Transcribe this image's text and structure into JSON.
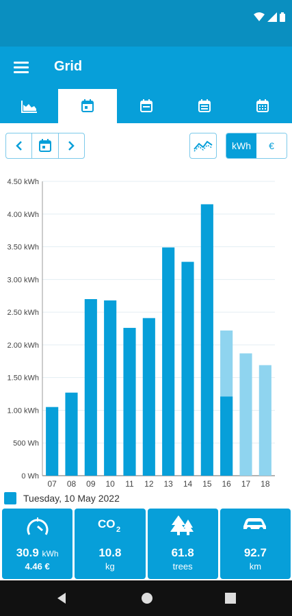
{
  "app": {
    "title": "Grid"
  },
  "tabs": [
    {
      "icon": "area-chart-icon",
      "active": false
    },
    {
      "icon": "day-calendar-icon",
      "active": true
    },
    {
      "icon": "week-calendar-icon",
      "active": false
    },
    {
      "icon": "month-calendar-icon",
      "active": false
    },
    {
      "icon": "year-calendar-icon",
      "active": false
    }
  ],
  "units": {
    "kwh": "kWh",
    "eur": "€",
    "selected": "kWh"
  },
  "legend": {
    "label": "Tuesday, 10 May 2022"
  },
  "chart_data": {
    "type": "bar",
    "categories": [
      "07",
      "08",
      "09",
      "10",
      "11",
      "12",
      "13",
      "14",
      "15",
      "16",
      "17",
      "18"
    ],
    "series": [
      {
        "values": [
          1.05,
          1.27,
          2.7,
          2.68,
          2.26,
          2.41,
          3.49,
          3.27,
          4.15,
          1.21,
          null,
          null
        ]
      },
      {
        "values": [
          null,
          null,
          null,
          null,
          null,
          null,
          null,
          null,
          null,
          2.22,
          1.87,
          1.69
        ]
      }
    ],
    "ytick_labels": [
      "0 Wh",
      "500 Wh",
      "1.00 kWh",
      "1.50 kWh",
      "2.00 kWh",
      "2.50 kWh",
      "3.00 kWh",
      "3.50 kWh",
      "4.00 kWh",
      "4.50 kWh"
    ],
    "ylim": [
      0,
      4.5
    ],
    "grid": true,
    "legend_position": "bottom-left",
    "colors": {
      "actual": "#079fd9",
      "forecast": "#8fd4ef"
    }
  },
  "cards": [
    {
      "icon": "gauge-icon",
      "value": "30.9",
      "unit_inline": "kWh",
      "sub": "4.46 €"
    },
    {
      "icon": "co2-icon",
      "value": "10.8",
      "unit": "kg"
    },
    {
      "icon": "trees-icon",
      "value": "61.8",
      "unit": "trees"
    },
    {
      "icon": "car-icon",
      "value": "92.7",
      "unit": "km"
    }
  ],
  "colors": {
    "primary": "#079fd9",
    "statusbar": "#0a8fc0"
  }
}
